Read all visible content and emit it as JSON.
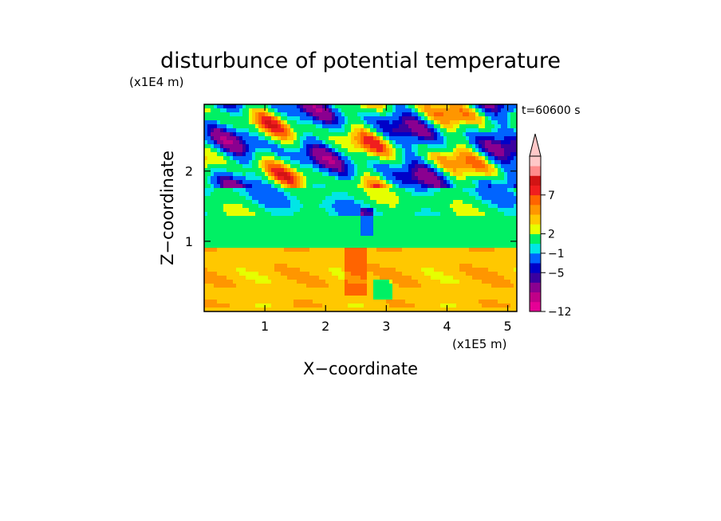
{
  "chart_data": {
    "type": "heatmap",
    "title": "disturbunce of potential temperature",
    "time_label": "t=60600 s",
    "xlabel": "X−coordinate",
    "ylabel": "Z−coordinate",
    "x_unit": "(x1E5 m)",
    "y_unit": "(x1E4 m)",
    "xlim": [
      0,
      5.15
    ],
    "ylim": [
      0,
      2.95
    ],
    "x_ticks": [
      1,
      2,
      3,
      4,
      5
    ],
    "y_ticks": [
      1,
      2
    ],
    "x_tick_labels": [
      "1",
      "2",
      "3",
      "4",
      "5"
    ],
    "y_tick_labels": [
      "1",
      "2"
    ],
    "colorbar": {
      "colors": [
        "#e60096",
        "#c00088",
        "#8a0090",
        "#3a00a0",
        "#0000c8",
        "#0064ff",
        "#00e6e6",
        "#00f064",
        "#e6ff00",
        "#ffc800",
        "#ff9600",
        "#ff6400",
        "#f01e1e",
        "#d21414",
        "#ff8c8c",
        "#ffc8c8"
      ],
      "labels": [
        "−12",
        "−5",
        "−1",
        "2",
        "7"
      ],
      "label_levels": [
        0,
        4,
        6,
        8,
        12
      ],
      "extend_top": true
    },
    "field_summary": "Disturbance field: positive (yellow/orange) below ~1e4 m, alternating strong positive/negative (red/blue) perturbations above ~1.5e4 m near the top"
  }
}
